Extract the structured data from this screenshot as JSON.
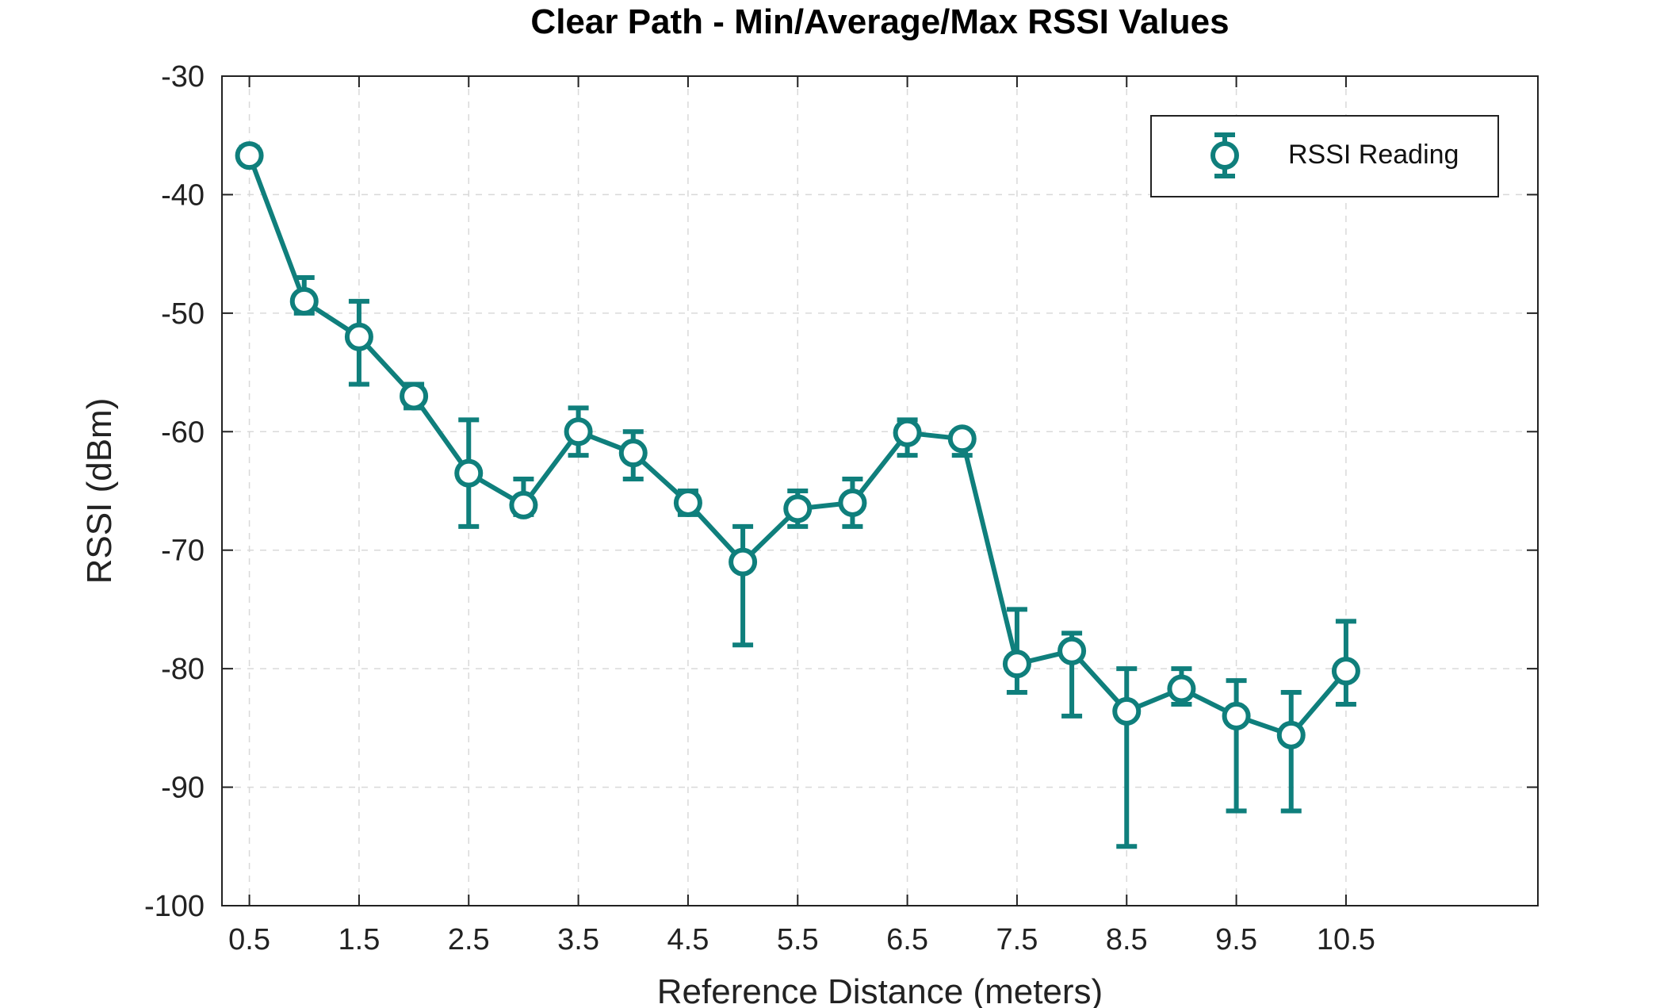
{
  "chart_data": {
    "type": "line",
    "title": "Clear Path - Min/Average/Max RSSI Values",
    "xlabel": "Reference Distance (meters)",
    "ylabel": "RSSI (dBm)",
    "xlim": [
      0.25,
      12.25
    ],
    "ylim": [
      -100,
      -30
    ],
    "xticks": [
      0.5,
      1.5,
      2.5,
      3.5,
      4.5,
      5.5,
      6.5,
      7.5,
      8.5,
      9.5,
      10.5
    ],
    "xtick_labels": [
      "0.5",
      "1.5",
      "2.5",
      "3.5",
      "4.5",
      "5.5",
      "6.5",
      "7.5",
      "8.5",
      "9.5",
      "10.5"
    ],
    "yticks": [
      -100,
      -90,
      -80,
      -70,
      -60,
      -50,
      -40,
      -30
    ],
    "ytick_labels": [
      "-100",
      "-90",
      "-80",
      "-70",
      "-60",
      "-50",
      "-40",
      "-30"
    ],
    "grid": true,
    "legend_position": "top-right",
    "color": "#0f7f7c",
    "series": [
      {
        "name": "RSSI Reading",
        "x": [
          0.5,
          1.0,
          1.5,
          2.0,
          2.5,
          3.0,
          3.5,
          4.0,
          4.5,
          5.0,
          5.5,
          6.0,
          6.5,
          7.0,
          7.5,
          8.0,
          8.5,
          9.0,
          9.5,
          10.0,
          10.5
        ],
        "avg": [
          -36.7,
          -49.0,
          -52.0,
          -57.0,
          -63.5,
          -66.2,
          -60.0,
          -61.8,
          -66.0,
          -71.0,
          -66.5,
          -66.0,
          -60.1,
          -60.6,
          -79.6,
          -78.5,
          -83.6,
          -81.7,
          -84.0,
          -85.6,
          -80.2
        ],
        "min": [
          -37.0,
          -50.0,
          -56.0,
          -58.0,
          -68.0,
          -67.0,
          -62.0,
          -64.0,
          -67.0,
          -78.0,
          -68.0,
          -68.0,
          -62.0,
          -62.0,
          -82.0,
          -84.0,
          -95.0,
          -83.0,
          -92.0,
          -92.0,
          -83.0
        ],
        "max": [
          -36.0,
          -47.0,
          -49.0,
          -56.0,
          -59.0,
          -64.0,
          -58.0,
          -60.0,
          -65.0,
          -68.0,
          -65.0,
          -64.0,
          -59.0,
          -60.0,
          -75.0,
          -77.0,
          -80.0,
          -80.0,
          -81.0,
          -82.0,
          -76.0
        ]
      }
    ]
  }
}
